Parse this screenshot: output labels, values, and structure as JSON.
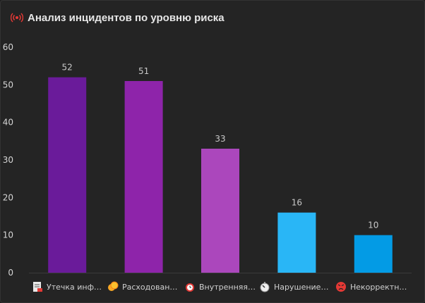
{
  "header": {
    "title": "Анализ инцидентов по уровню риска",
    "icon": "broadcast-icon"
  },
  "colors": {
    "background": "#242424",
    "grid": "#3a3a3a",
    "axis_text": "#d6d6d6",
    "value_text": "#c8c8c8"
  },
  "chart_data": {
    "type": "bar",
    "title": "Анализ инцидентов по уровню риска",
    "categories": [
      "Утечка инф…",
      "Расходован…",
      "Внутренняя…",
      "Нарушение…",
      "Некорректн…"
    ],
    "values": [
      52,
      51,
      33,
      16,
      10
    ],
    "bar_colors": [
      "#6a1b9a",
      "#8e24aa",
      "#ab47bc",
      "#29b6f6",
      "#039be5"
    ],
    "ylim": [
      0,
      60
    ],
    "yticks": [
      0,
      10,
      20,
      30,
      40,
      50,
      60
    ],
    "grid": false,
    "data_labels": true,
    "legend_position": "bottom"
  },
  "legend": [
    {
      "label": "Утечка инф…",
      "icon": "document-icon"
    },
    {
      "label": "Расходован…",
      "icon": "coins-icon"
    },
    {
      "label": "Внутренняя…",
      "icon": "alarm-clock-icon"
    },
    {
      "label": "Нарушение…",
      "icon": "stopwatch-icon"
    },
    {
      "label": "Некорректн…",
      "icon": "angry-face-icon"
    }
  ]
}
